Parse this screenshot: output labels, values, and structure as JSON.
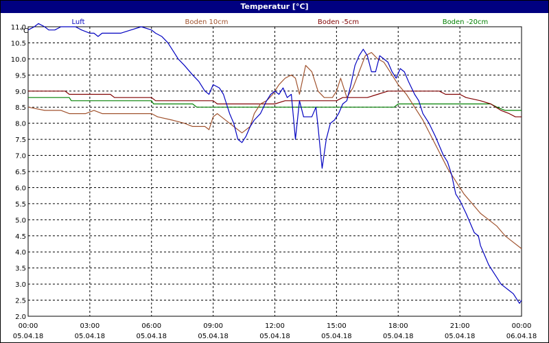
{
  "window": {
    "title": "Temperatur [°C]"
  },
  "colors": {
    "frame_title_bg": "#000080",
    "grid": "#000000",
    "plot_bg": "#ffffff"
  },
  "chart_data": {
    "type": "line",
    "title": "Temperatur [°C]",
    "ylabel": "°C",
    "xlabel": "",
    "ylim": [
      2.0,
      11.0
    ],
    "y_ticks": [
      "2.0",
      "2.5",
      "3.0",
      "3.5",
      "4.0",
      "4.5",
      "5.0",
      "5.5",
      "6.0",
      "6.5",
      "7.0",
      "7.5",
      "8.0",
      "8.5",
      "9.0",
      "9.5",
      "10.0",
      "10.5",
      "11.0"
    ],
    "x_range_hours": [
      0,
      24
    ],
    "x_ticks": [
      {
        "time": "00:00",
        "date": "05.04.18"
      },
      {
        "time": "03:00",
        "date": "05.04.18"
      },
      {
        "time": "06:00",
        "date": "05.04.18"
      },
      {
        "time": "09:00",
        "date": "05.04.18"
      },
      {
        "time": "12:00",
        "date": "05.04.18"
      },
      {
        "time": "15:00",
        "date": "05.04.18"
      },
      {
        "time": "18:00",
        "date": "05.04.18"
      },
      {
        "time": "21:00",
        "date": "05.04.18"
      },
      {
        "time": "00:00",
        "date": "06.04.18"
      }
    ],
    "grid": true,
    "legend_position": "top",
    "series": [
      {
        "name": "Luft",
        "color": "#0000c0",
        "points": [
          [
            0,
            10.9
          ],
          [
            0.3,
            11.0
          ],
          [
            0.5,
            11.1
          ],
          [
            0.8,
            11.0
          ],
          [
            1.0,
            10.9
          ],
          [
            1.3,
            10.9
          ],
          [
            1.6,
            11.0
          ],
          [
            2.0,
            11.0
          ],
          [
            2.3,
            11.0
          ],
          [
            2.6,
            10.9
          ],
          [
            3.0,
            10.8
          ],
          [
            3.2,
            10.8
          ],
          [
            3.4,
            10.7
          ],
          [
            3.6,
            10.8
          ],
          [
            4.0,
            10.8
          ],
          [
            4.5,
            10.8
          ],
          [
            5.0,
            10.9
          ],
          [
            5.5,
            11.0
          ],
          [
            6.0,
            10.9
          ],
          [
            6.2,
            10.8
          ],
          [
            6.5,
            10.7
          ],
          [
            6.8,
            10.5
          ],
          [
            7.0,
            10.3
          ],
          [
            7.3,
            10.0
          ],
          [
            7.6,
            9.8
          ],
          [
            8.0,
            9.5
          ],
          [
            8.3,
            9.3
          ],
          [
            8.6,
            9.0
          ],
          [
            8.8,
            8.9
          ],
          [
            9.0,
            9.2
          ],
          [
            9.3,
            9.1
          ],
          [
            9.5,
            8.9
          ],
          [
            9.8,
            8.3
          ],
          [
            10.0,
            8.0
          ],
          [
            10.2,
            7.5
          ],
          [
            10.4,
            7.4
          ],
          [
            10.6,
            7.6
          ],
          [
            10.8,
            7.9
          ],
          [
            11.0,
            8.1
          ],
          [
            11.3,
            8.3
          ],
          [
            11.6,
            8.7
          ],
          [
            11.8,
            8.9
          ],
          [
            12.0,
            9.0
          ],
          [
            12.2,
            8.9
          ],
          [
            12.4,
            9.1
          ],
          [
            12.6,
            8.8
          ],
          [
            12.8,
            8.9
          ],
          [
            13.0,
            7.5
          ],
          [
            13.2,
            8.7
          ],
          [
            13.4,
            8.2
          ],
          [
            13.6,
            8.2
          ],
          [
            13.8,
            8.2
          ],
          [
            14.0,
            8.5
          ],
          [
            14.1,
            7.9
          ],
          [
            14.3,
            6.6
          ],
          [
            14.5,
            7.5
          ],
          [
            14.7,
            8.0
          ],
          [
            14.9,
            8.1
          ],
          [
            15.1,
            8.3
          ],
          [
            15.3,
            8.6
          ],
          [
            15.5,
            8.7
          ],
          [
            15.7,
            9.2
          ],
          [
            15.9,
            9.8
          ],
          [
            16.1,
            10.1
          ],
          [
            16.3,
            10.3
          ],
          [
            16.5,
            10.1
          ],
          [
            16.7,
            9.6
          ],
          [
            16.9,
            9.6
          ],
          [
            17.1,
            10.1
          ],
          [
            17.3,
            10.0
          ],
          [
            17.5,
            9.9
          ],
          [
            17.7,
            9.6
          ],
          [
            17.9,
            9.4
          ],
          [
            18.1,
            9.7
          ],
          [
            18.3,
            9.6
          ],
          [
            18.5,
            9.3
          ],
          [
            18.8,
            8.9
          ],
          [
            19.0,
            8.7
          ],
          [
            19.2,
            8.3
          ],
          [
            19.5,
            8.0
          ],
          [
            19.8,
            7.6
          ],
          [
            20.0,
            7.3
          ],
          [
            20.2,
            7.0
          ],
          [
            20.4,
            6.8
          ],
          [
            20.6,
            6.4
          ],
          [
            20.8,
            5.8
          ],
          [
            21.0,
            5.6
          ],
          [
            21.3,
            5.2
          ],
          [
            21.5,
            4.9
          ],
          [
            21.7,
            4.6
          ],
          [
            21.9,
            4.5
          ],
          [
            22.0,
            4.2
          ],
          [
            22.2,
            3.9
          ],
          [
            22.4,
            3.6
          ],
          [
            22.6,
            3.4
          ],
          [
            22.8,
            3.2
          ],
          [
            23.0,
            3.0
          ],
          [
            23.2,
            2.9
          ],
          [
            23.4,
            2.8
          ],
          [
            23.6,
            2.7
          ],
          [
            23.8,
            2.5
          ],
          [
            23.9,
            2.4
          ],
          [
            24.0,
            2.5
          ]
        ]
      },
      {
        "name": "Boden 10cm",
        "color": "#a0522d",
        "points": [
          [
            0,
            8.5
          ],
          [
            0.8,
            8.4
          ],
          [
            1.6,
            8.4
          ],
          [
            2.0,
            8.3
          ],
          [
            2.8,
            8.3
          ],
          [
            3.2,
            8.4
          ],
          [
            3.6,
            8.3
          ],
          [
            4.2,
            8.3
          ],
          [
            5.0,
            8.3
          ],
          [
            6.0,
            8.3
          ],
          [
            6.3,
            8.2
          ],
          [
            7.0,
            8.1
          ],
          [
            7.6,
            8.0
          ],
          [
            8.0,
            7.9
          ],
          [
            8.6,
            7.9
          ],
          [
            8.8,
            7.8
          ],
          [
            9.0,
            8.2
          ],
          [
            9.2,
            8.3
          ],
          [
            9.4,
            8.2
          ],
          [
            9.8,
            8.0
          ],
          [
            10.0,
            7.9
          ],
          [
            10.4,
            7.7
          ],
          [
            10.8,
            7.9
          ],
          [
            11.0,
            8.3
          ],
          [
            11.3,
            8.6
          ],
          [
            11.6,
            8.7
          ],
          [
            11.9,
            8.9
          ],
          [
            12.2,
            9.2
          ],
          [
            12.5,
            9.4
          ],
          [
            12.8,
            9.5
          ],
          [
            13.0,
            9.4
          ],
          [
            13.2,
            8.9
          ],
          [
            13.5,
            9.8
          ],
          [
            13.8,
            9.6
          ],
          [
            14.1,
            9.0
          ],
          [
            14.4,
            8.8
          ],
          [
            14.8,
            8.8
          ],
          [
            15.0,
            9.0
          ],
          [
            15.2,
            9.4
          ],
          [
            15.5,
            8.8
          ],
          [
            15.8,
            9.1
          ],
          [
            16.1,
            9.6
          ],
          [
            16.4,
            10.1
          ],
          [
            16.7,
            10.2
          ],
          [
            17.0,
            10.0
          ],
          [
            17.3,
            9.9
          ],
          [
            17.6,
            9.6
          ],
          [
            18.0,
            9.2
          ],
          [
            18.4,
            8.9
          ],
          [
            18.8,
            8.5
          ],
          [
            19.2,
            8.1
          ],
          [
            19.6,
            7.6
          ],
          [
            20.0,
            7.1
          ],
          [
            20.4,
            6.6
          ],
          [
            20.8,
            6.2
          ],
          [
            21.2,
            5.8
          ],
          [
            21.6,
            5.5
          ],
          [
            22.0,
            5.2
          ],
          [
            22.4,
            5.0
          ],
          [
            22.8,
            4.8
          ],
          [
            23.2,
            4.5
          ],
          [
            23.6,
            4.3
          ],
          [
            24.0,
            4.1
          ]
        ]
      },
      {
        "name": "Boden -5cm",
        "color": "#800000",
        "points": [
          [
            0,
            9.0
          ],
          [
            1.8,
            9.0
          ],
          [
            2.0,
            8.9
          ],
          [
            4.0,
            8.9
          ],
          [
            4.2,
            8.8
          ],
          [
            6.0,
            8.8
          ],
          [
            6.2,
            8.7
          ],
          [
            9.0,
            8.7
          ],
          [
            9.2,
            8.6
          ],
          [
            12.0,
            8.6
          ],
          [
            12.5,
            8.7
          ],
          [
            15.0,
            8.7
          ],
          [
            15.3,
            8.8
          ],
          [
            16.5,
            8.8
          ],
          [
            17.0,
            8.9
          ],
          [
            17.5,
            9.0
          ],
          [
            20.0,
            9.0
          ],
          [
            20.3,
            8.9
          ],
          [
            21.0,
            8.9
          ],
          [
            21.3,
            8.8
          ],
          [
            22.0,
            8.7
          ],
          [
            22.5,
            8.6
          ],
          [
            23.0,
            8.4
          ],
          [
            23.4,
            8.3
          ],
          [
            23.7,
            8.2
          ],
          [
            24.0,
            8.2
          ]
        ]
      },
      {
        "name": "Boden -20cm",
        "color": "#008000",
        "points": [
          [
            0,
            8.8
          ],
          [
            2.0,
            8.8
          ],
          [
            2.1,
            8.7
          ],
          [
            6.0,
            8.7
          ],
          [
            6.1,
            8.6
          ],
          [
            8.0,
            8.6
          ],
          [
            8.2,
            8.5
          ],
          [
            17.8,
            8.5
          ],
          [
            18.0,
            8.6
          ],
          [
            22.5,
            8.6
          ],
          [
            22.8,
            8.5
          ],
          [
            23.2,
            8.4
          ],
          [
            24.0,
            8.4
          ]
        ]
      }
    ]
  }
}
